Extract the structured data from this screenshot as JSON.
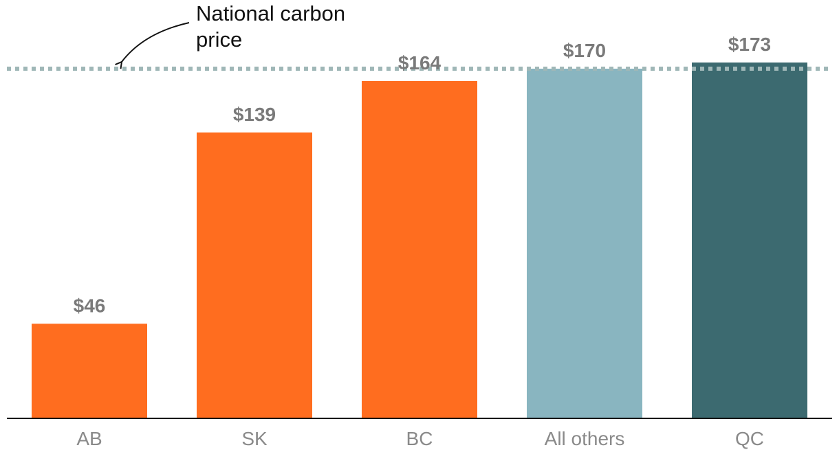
{
  "chart_data": {
    "type": "bar",
    "categories": [
      "AB",
      "SK",
      "BC",
      "All others",
      "QC"
    ],
    "values": [
      46,
      139,
      164,
      170,
      173
    ],
    "value_labels": [
      "$46",
      "$139",
      "$164",
      "$170",
      "$173"
    ],
    "bar_colors": [
      "#ff6d1f",
      "#ff6d1f",
      "#ff6d1f",
      "#89b5c0",
      "#3c6a70"
    ],
    "reference_line": {
      "value": 170,
      "label_lines": [
        "National carbon",
        "price"
      ],
      "color": "#9fb7b7",
      "style": "dotted"
    },
    "ylim": [
      0,
      173
    ],
    "grid": false,
    "title": "",
    "xlabel": "",
    "ylabel": ""
  },
  "colors": {
    "value_label": "#7a7a7a",
    "category_label": "#8a8a8a",
    "axis": "#111111"
  }
}
